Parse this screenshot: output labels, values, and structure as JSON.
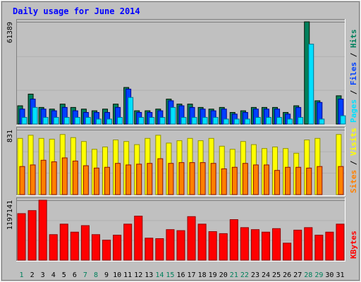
{
  "chart_data": [
    {
      "type": "bar",
      "title": "Daily usage for June 2014",
      "categories": [
        "1",
        "2",
        "3",
        "4",
        "5",
        "6",
        "7",
        "8",
        "9",
        "10",
        "11",
        "12",
        "13",
        "14",
        "15",
        "16",
        "17",
        "18",
        "19",
        "20",
        "21",
        "22",
        "23",
        "24",
        "25",
        "26",
        "27",
        "28",
        "29",
        "30",
        "31"
      ],
      "weekend_days": [
        "1",
        "7",
        "8",
        "14",
        "15",
        "21",
        "22",
        "28",
        "29"
      ],
      "y_tick_label": "61389",
      "ylim": [
        0,
        61389
      ],
      "legend": [
        "Pages",
        "Files",
        "Hits"
      ],
      "legend_separator": " / ",
      "series": [
        {
          "name": "Hits",
          "color": "#00805c",
          "values": [
            11000,
            18000,
            10000,
            9000,
            12000,
            10000,
            9000,
            8000,
            9000,
            12000,
            22000,
            8000,
            8000,
            9000,
            15000,
            12000,
            12000,
            10000,
            9000,
            10000,
            7000,
            8000,
            10000,
            10000,
            10000,
            7000,
            11000,
            61389,
            14000,
            0,
            17000
          ]
        },
        {
          "name": "Files",
          "color": "#0040ff",
          "values": [
            9000,
            15000,
            9000,
            8000,
            10000,
            8000,
            7000,
            7000,
            7000,
            10000,
            21000,
            7000,
            7000,
            8000,
            14000,
            11000,
            10000,
            9000,
            8000,
            9000,
            6000,
            7000,
            9000,
            9000,
            9000,
            6000,
            10000,
            0,
            13000,
            0,
            15000
          ]
        },
        {
          "name": "Pages",
          "color": "#00e0ff",
          "values": [
            4000,
            10000,
            4000,
            4000,
            4000,
            4000,
            4000,
            3000,
            3000,
            4000,
            16000,
            4000,
            4000,
            4000,
            10000,
            4000,
            4000,
            4000,
            4000,
            3000,
            3000,
            3000,
            4000,
            4000,
            4000,
            3000,
            4000,
            48000,
            3000,
            0,
            5000
          ]
        }
      ]
    },
    {
      "type": "bar",
      "categories": [
        "1",
        "2",
        "3",
        "4",
        "5",
        "6",
        "7",
        "8",
        "9",
        "10",
        "11",
        "12",
        "13",
        "14",
        "15",
        "16",
        "17",
        "18",
        "19",
        "20",
        "21",
        "22",
        "23",
        "24",
        "25",
        "26",
        "27",
        "28",
        "29",
        "30",
        "31"
      ],
      "y_tick_label": "831",
      "ylim": [
        0,
        831
      ],
      "legend": [
        "Sites",
        "Visits"
      ],
      "legend_separator": " / ",
      "series": [
        {
          "name": "Visits",
          "color": "#ffff00",
          "values": [
            720,
            760,
            720,
            710,
            770,
            730,
            680,
            580,
            610,
            700,
            680,
            640,
            720,
            760,
            660,
            690,
            720,
            690,
            720,
            620,
            580,
            680,
            640,
            590,
            610,
            590,
            530,
            700,
            720,
            0,
            770
          ]
        },
        {
          "name": "Sites",
          "color": "#ff8000",
          "values": [
            360,
            380,
            440,
            420,
            470,
            430,
            370,
            340,
            350,
            400,
            380,
            390,
            400,
            460,
            400,
            410,
            410,
            410,
            400,
            330,
            350,
            400,
            380,
            380,
            310,
            350,
            350,
            340,
            360,
            0,
            360
          ]
        }
      ]
    },
    {
      "type": "bar",
      "categories": [
        "1",
        "2",
        "3",
        "4",
        "5",
        "6",
        "7",
        "8",
        "9",
        "10",
        "11",
        "12",
        "13",
        "14",
        "15",
        "16",
        "17",
        "18",
        "19",
        "20",
        "21",
        "22",
        "23",
        "24",
        "25",
        "26",
        "27",
        "28",
        "29",
        "30",
        "31"
      ],
      "y_tick_label": "1197141",
      "ylim": [
        0,
        1197141
      ],
      "legend": [
        "KBytes"
      ],
      "legend_separator": "",
      "series": [
        {
          "name": "KBytes",
          "color": "#ff0000",
          "values": [
            930000,
            990000,
            1197141,
            510000,
            720000,
            560000,
            690000,
            510000,
            400000,
            500000,
            720000,
            880000,
            440000,
            430000,
            610000,
            590000,
            870000,
            720000,
            570000,
            530000,
            810000,
            650000,
            610000,
            560000,
            630000,
            340000,
            600000,
            650000,
            500000,
            560000,
            720000
          ]
        }
      ]
    }
  ],
  "colors": {
    "frame_bg": "#c0c0c0",
    "panel_bg": "#c0c0c0",
    "title": "#0000ff",
    "day_label": "#000000",
    "weekend_label": "#00805c",
    "legend_separator": "#000000"
  }
}
